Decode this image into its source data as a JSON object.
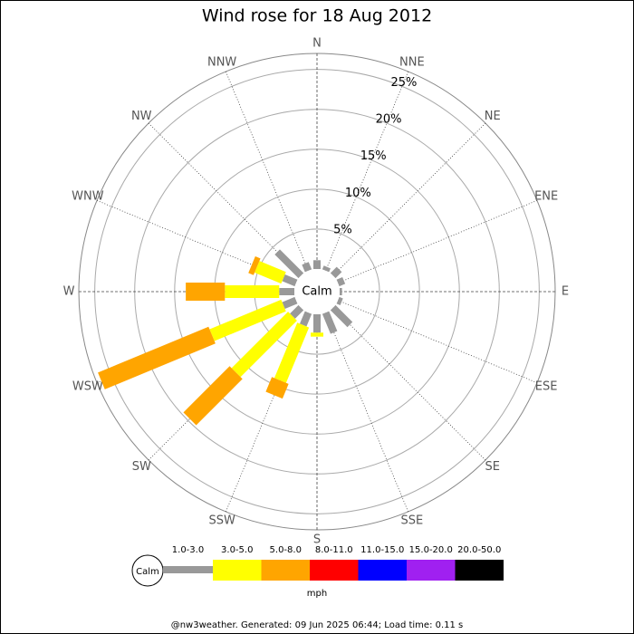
{
  "chart_data": {
    "type": "windrose",
    "title": "Wind rose for 18 Aug 2012",
    "directions": [
      "N",
      "NNE",
      "NE",
      "ENE",
      "E",
      "ESE",
      "SE",
      "SSE",
      "S",
      "SSW",
      "SW",
      "WSW",
      "W",
      "WNW",
      "NW",
      "NNW"
    ],
    "calm_label": "Calm",
    "unit": "mph",
    "footer": "@nw3weather. Generated: 09 Jun 2025 06:44; Load time: 0.11 s",
    "rlim": [
      0,
      27
    ],
    "rticks": [
      {
        "value": 5,
        "label": "5%"
      },
      {
        "value": 10,
        "label": "10%"
      },
      {
        "value": 15,
        "label": "15%"
      },
      {
        "value": 20,
        "label": "20%"
      },
      {
        "value": 25,
        "label": "25%"
      }
    ],
    "series": [
      {
        "name": "1.0-3.0",
        "color": "#999999",
        "values": [
          1.1,
          0.5,
          1.1,
          0.8,
          0.3,
          0.5,
          3.0,
          2.7,
          2.3,
          1.7,
          1.5,
          1.7,
          1.9,
          1.7,
          4.2,
          1.0
        ]
      },
      {
        "name": "3.0-5.0",
        "color": "#ffff00",
        "values": [
          0,
          0,
          0,
          0,
          0,
          0,
          0,
          0,
          0.5,
          7.5,
          10.0,
          9.7,
          6.8,
          3.6,
          0,
          0
        ]
      },
      {
        "name": "5.0-8.0",
        "color": "#ffa500",
        "values": [
          0,
          0,
          0,
          0,
          0,
          0,
          0,
          0,
          0,
          2.0,
          8.2,
          15.0,
          4.9,
          0.7,
          0,
          0
        ]
      },
      {
        "name": "8.0-11.0",
        "color": "#ff0000",
        "values": [
          0,
          0,
          0,
          0,
          0,
          0,
          0,
          0,
          0,
          0,
          0,
          0,
          0,
          0,
          0,
          0
        ]
      },
      {
        "name": "11.0-15.0",
        "color": "#0000ff",
        "values": [
          0,
          0,
          0,
          0,
          0,
          0,
          0,
          0,
          0,
          0,
          0,
          0,
          0,
          0,
          0,
          0
        ]
      },
      {
        "name": "15.0-20.0",
        "color": "#a020f0",
        "values": [
          0,
          0,
          0,
          0,
          0,
          0,
          0,
          0,
          0,
          0,
          0,
          0,
          0,
          0,
          0,
          0
        ]
      },
      {
        "name": "20.0-50.0",
        "color": "#000000",
        "values": [
          0,
          0,
          0,
          0,
          0,
          0,
          0,
          0,
          0,
          0,
          0,
          0,
          0,
          0,
          0,
          0
        ]
      }
    ]
  }
}
